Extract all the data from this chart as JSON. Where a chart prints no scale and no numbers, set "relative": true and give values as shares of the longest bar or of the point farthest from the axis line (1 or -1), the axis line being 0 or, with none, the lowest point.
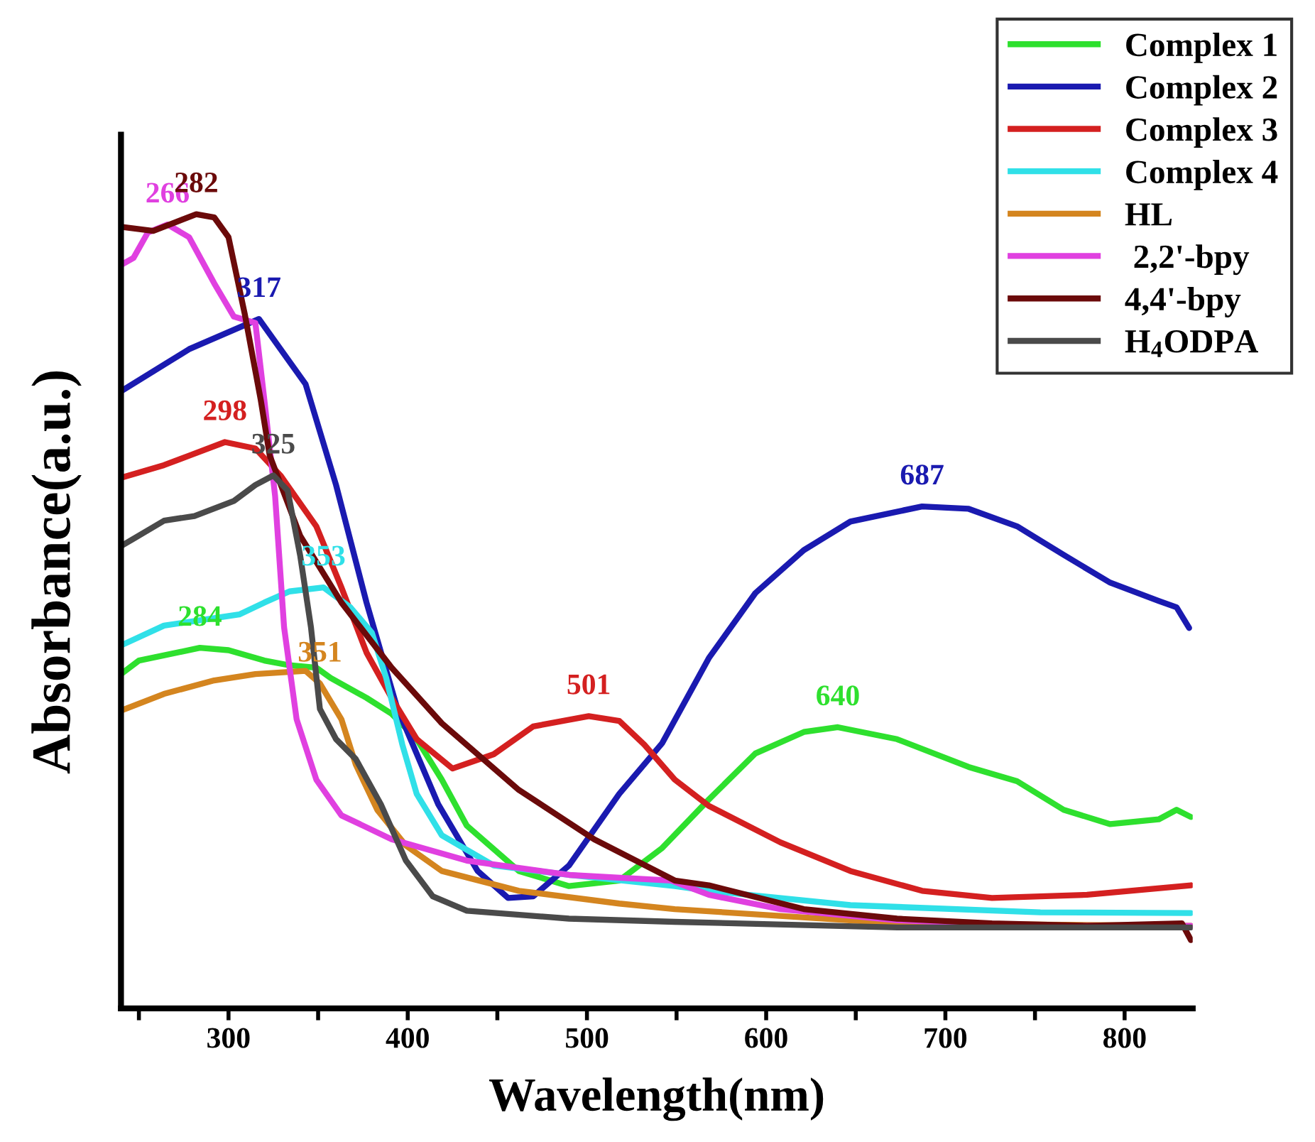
{
  "chart_data": {
    "type": "line",
    "xlabel": "Wavelength(nm)",
    "ylabel": "Absorbance(a.u.)",
    "relative": true,
    "xlim": [
      240,
      838
    ],
    "xticks": [
      {
        "value": 250,
        "label": null
      },
      300,
      {
        "value": 350,
        "label": null
      },
      400,
      {
        "value": 450,
        "label": null
      },
      500,
      {
        "value": 550,
        "label": null
      },
      600,
      {
        "value": 650,
        "label": null
      },
      700,
      {
        "value": 750,
        "label": null
      },
      800
    ],
    "tick_labels": "x",
    "legend": "top right",
    "grid": false,
    "line_style": "solid",
    "marker": "none",
    "series": [
      {
        "name": "Complex 1",
        "color": "#2ee02e",
        "x": [
          240,
          250,
          284,
          300,
          320,
          334,
          349,
          357,
          377,
          391,
          405,
          419,
          433,
          462,
          490,
          518,
          542,
          568,
          594,
          621,
          640,
          673,
          713,
          740,
          766,
          792,
          819,
          829,
          837
        ],
        "values": [
          0.421,
          0.438,
          0.454,
          0.451,
          0.438,
          0.432,
          0.429,
          0.416,
          0.391,
          0.371,
          0.339,
          0.288,
          0.23,
          0.173,
          0.154,
          0.161,
          0.202,
          0.263,
          0.321,
          0.348,
          0.354,
          0.339,
          0.304,
          0.286,
          0.25,
          0.232,
          0.238,
          0.25,
          0.241
        ]
      },
      {
        "name": "Complex 2",
        "color": "#1a1ab0",
        "x": [
          240,
          278,
          317,
          343,
          360,
          377,
          394,
          417,
          439,
          456,
          470,
          490,
          518,
          542,
          568,
          594,
          621,
          647,
          687,
          713,
          740,
          766,
          792,
          819,
          829,
          836
        ],
        "values": [
          0.777,
          0.83,
          0.868,
          0.786,
          0.659,
          0.511,
          0.379,
          0.257,
          0.173,
          0.139,
          0.141,
          0.18,
          0.27,
          0.334,
          0.441,
          0.523,
          0.577,
          0.613,
          0.632,
          0.629,
          0.607,
          0.571,
          0.536,
          0.513,
          0.505,
          0.479
        ]
      },
      {
        "name": "Complex 3",
        "color": "#d42020",
        "x": [
          240,
          264,
          278,
          298,
          315,
          329,
          349,
          363,
          377,
          391,
          405,
          425,
          448,
          470,
          501,
          518,
          532,
          549,
          568,
          608,
          647,
          687,
          726,
          779,
          837
        ],
        "values": [
          0.668,
          0.684,
          0.696,
          0.713,
          0.705,
          0.671,
          0.607,
          0.53,
          0.448,
          0.391,
          0.339,
          0.302,
          0.32,
          0.355,
          0.368,
          0.362,
          0.332,
          0.288,
          0.255,
          0.209,
          0.173,
          0.148,
          0.139,
          0.143,
          0.155
        ]
      },
      {
        "name": "Complex 4",
        "color": "#30e0e8",
        "x": [
          240,
          264,
          306,
          320,
          334,
          353,
          368,
          380,
          388,
          397,
          405,
          419,
          448,
          490,
          549,
          568,
          647,
          753,
          837
        ],
        "values": [
          0.457,
          0.482,
          0.496,
          0.511,
          0.525,
          0.53,
          0.505,
          0.473,
          0.416,
          0.332,
          0.27,
          0.218,
          0.18,
          0.168,
          0.154,
          0.148,
          0.13,
          0.121,
          0.12
        ]
      },
      {
        "name": "HL",
        "color": "#d4851f",
        "x": [
          240,
          264,
          292,
          315,
          343,
          351,
          363,
          371,
          383,
          399,
          419,
          462,
          518,
          549,
          673,
          837
        ],
        "values": [
          0.375,
          0.396,
          0.413,
          0.421,
          0.425,
          0.409,
          0.364,
          0.307,
          0.25,
          0.205,
          0.173,
          0.148,
          0.132,
          0.125,
          0.107,
          0.104
        ]
      },
      {
        "name": " 2,2'-bpy",
        "color": "#e040e0",
        "x": [
          240,
          247,
          255,
          266,
          278,
          292,
          303,
          315,
          320,
          326,
          331,
          338,
          349,
          363,
          391,
          433,
          490,
          547,
          568,
          608,
          673,
          753,
          837
        ],
        "values": [
          0.936,
          0.945,
          0.977,
          0.987,
          0.971,
          0.913,
          0.871,
          0.863,
          0.766,
          0.645,
          0.48,
          0.364,
          0.288,
          0.243,
          0.213,
          0.186,
          0.168,
          0.161,
          0.143,
          0.125,
          0.111,
          0.104,
          0.104
        ]
      },
      {
        "name": "4,4'-bpy",
        "color": "#6b0a0a",
        "x": [
          240,
          258,
          282,
          292,
          300,
          309,
          318,
          323,
          340,
          363,
          391,
          419,
          462,
          504,
          549,
          568,
          621,
          673,
          726,
          779,
          832,
          837
        ],
        "values": [
          0.984,
          0.979,
          1.0,
          0.996,
          0.971,
          0.875,
          0.766,
          0.696,
          0.595,
          0.511,
          0.429,
          0.359,
          0.275,
          0.213,
          0.161,
          0.155,
          0.125,
          0.113,
          0.107,
          0.104,
          0.107,
          0.086
        ]
      },
      {
        "name": "H$_{4}$ODPA",
        "color": "#4a4a4a",
        "x": [
          240,
          264,
          281,
          303,
          315,
          325,
          333,
          340,
          346,
          351,
          360,
          371,
          385,
          399,
          414,
          433,
          490,
          549,
          673,
          837
        ],
        "values": [
          0.582,
          0.614,
          0.62,
          0.639,
          0.659,
          0.671,
          0.652,
          0.57,
          0.48,
          0.377,
          0.339,
          0.314,
          0.257,
          0.186,
          0.141,
          0.123,
          0.113,
          0.109,
          0.102,
          0.102
        ]
      }
    ],
    "annotations": [
      {
        "text": "266",
        "x": 266,
        "y": 0.987
      },
      {
        "text": "282",
        "x": 282,
        "y": 1.0
      },
      {
        "text": "317",
        "x": 317,
        "y": 0.868
      },
      {
        "text": "298",
        "x": 298,
        "y": 0.713
      },
      {
        "text": "325",
        "x": 325,
        "y": 0.671
      },
      {
        "text": "353",
        "x": 353,
        "y": 0.53
      },
      {
        "text": "351",
        "x": 351,
        "y": 0.409
      },
      {
        "text": "284",
        "x": 284,
        "y": 0.454
      },
      {
        "text": "501",
        "x": 501,
        "y": 0.368
      },
      {
        "text": "640",
        "x": 640,
        "y": 0.354
      },
      {
        "text": "687",
        "x": 687,
        "y": 0.632
      }
    ]
  }
}
